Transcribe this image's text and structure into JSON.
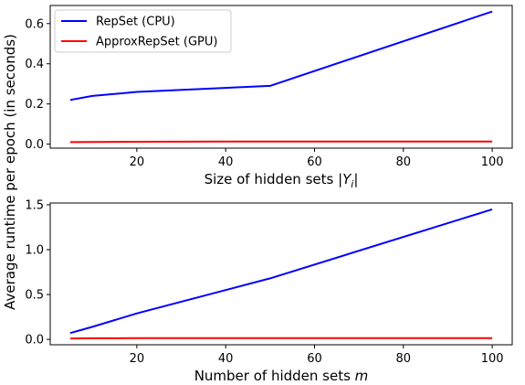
{
  "shared_ylabel": "Average runtime per epoch (in seconds)",
  "colors": {
    "repset": "#0000ff",
    "approx": "#ff0000"
  },
  "legend": {
    "placement": "upper-left",
    "items": [
      "RepSet (CPU)",
      "ApproxRepSet (GPU)"
    ]
  },
  "chart_data": [
    {
      "type": "line",
      "xlabel_prefix": "Size of hidden sets ",
      "xlabel_math": "|Y",
      "xlabel_sub": "i",
      "xlabel_suffix": "|",
      "xlim": [
        0.5,
        104.5
      ],
      "ylim": [
        -0.02,
        0.69
      ],
      "xticks": [
        20,
        40,
        60,
        80,
        100
      ],
      "yticks": [
        0.0,
        0.2,
        0.4,
        0.6
      ],
      "ytick_labels": [
        "0.0",
        "0.2",
        "0.4",
        "0.6"
      ],
      "series": [
        {
          "name": "RepSet (CPU)",
          "x": [
            5,
            10,
            20,
            50,
            100
          ],
          "y": [
            0.22,
            0.24,
            0.26,
            0.29,
            0.66
          ]
        },
        {
          "name": "ApproxRepSet (GPU)",
          "x": [
            5,
            10,
            20,
            50,
            100
          ],
          "y": [
            0.01,
            0.011,
            0.012,
            0.013,
            0.013
          ]
        }
      ]
    },
    {
      "type": "line",
      "xlabel_prefix": "Number of hidden sets ",
      "xlabel_math": "m",
      "xlabel_sub": "",
      "xlabel_suffix": "",
      "xlim": [
        0.5,
        104.5
      ],
      "ylim": [
        -0.06,
        1.52
      ],
      "xticks": [
        20,
        40,
        60,
        80,
        100
      ],
      "yticks": [
        0.0,
        0.5,
        1.0,
        1.5
      ],
      "ytick_labels": [
        "0.0",
        "0.5",
        "1.0",
        "1.5"
      ],
      "series": [
        {
          "name": "RepSet (CPU)",
          "x": [
            5,
            10,
            20,
            50,
            100
          ],
          "y": [
            0.07,
            0.14,
            0.29,
            0.68,
            1.45
          ]
        },
        {
          "name": "ApproxRepSet (GPU)",
          "x": [
            5,
            10,
            20,
            50,
            100
          ],
          "y": [
            0.01,
            0.012,
            0.013,
            0.013,
            0.013
          ]
        }
      ]
    }
  ]
}
